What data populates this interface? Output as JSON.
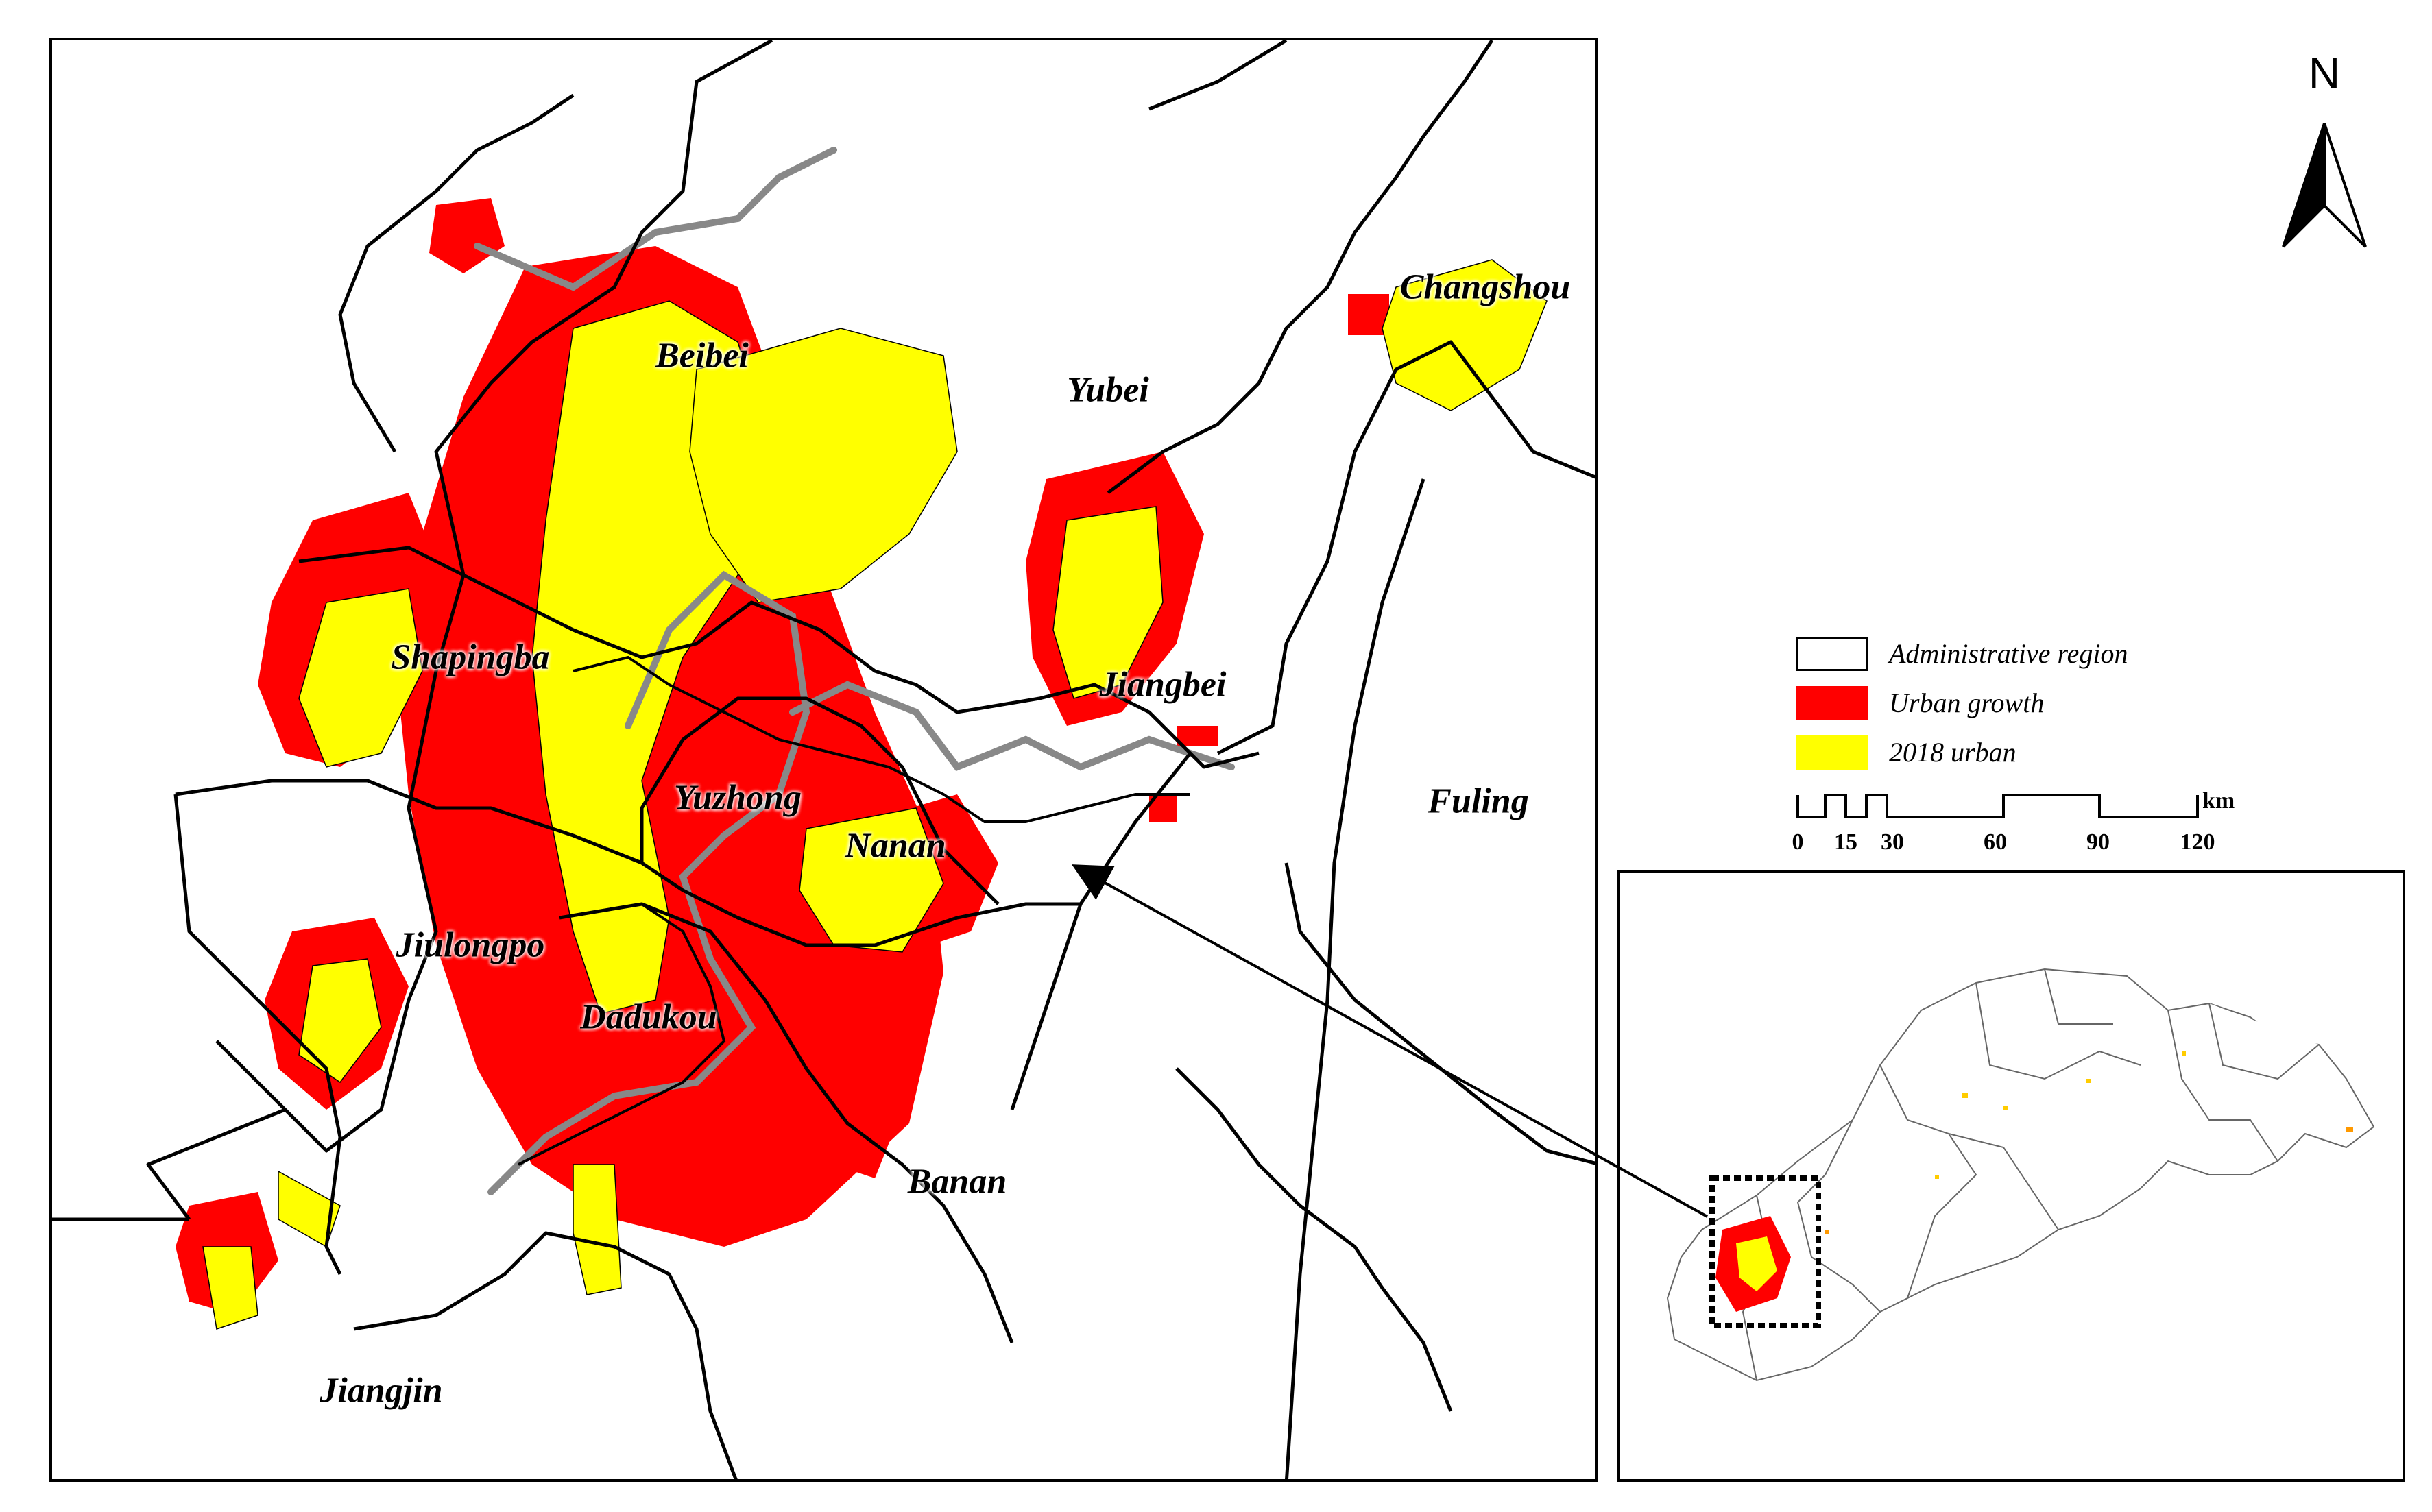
{
  "districts": [
    {
      "name": "Beibei"
    },
    {
      "name": "Yubei"
    },
    {
      "name": "Changshou"
    },
    {
      "name": "Shapingba"
    },
    {
      "name": "Jiangbei"
    },
    {
      "name": "Yuzhong"
    },
    {
      "name": "Nanan"
    },
    {
      "name": "Fuling"
    },
    {
      "name": "Jiulongpo"
    },
    {
      "name": "Dadukou"
    },
    {
      "name": "Banan"
    },
    {
      "name": "Jiangjin"
    }
  ],
  "north": {
    "label": "N"
  },
  "legend": {
    "items": [
      {
        "label": "Administrative region",
        "fill": "#ffffff"
      },
      {
        "label": "Urban growth",
        "fill": "#ff0000"
      },
      {
        "label": "2018 urban",
        "fill": "#ffff00"
      }
    ]
  },
  "scale": {
    "unit": "km",
    "ticks": [
      "0",
      "15",
      "30",
      "60",
      "90",
      "120"
    ]
  },
  "colors": {
    "urban_growth": "#ff0000",
    "urban_2018": "#ffff00",
    "boundary": "#000000",
    "river": "#888888"
  }
}
